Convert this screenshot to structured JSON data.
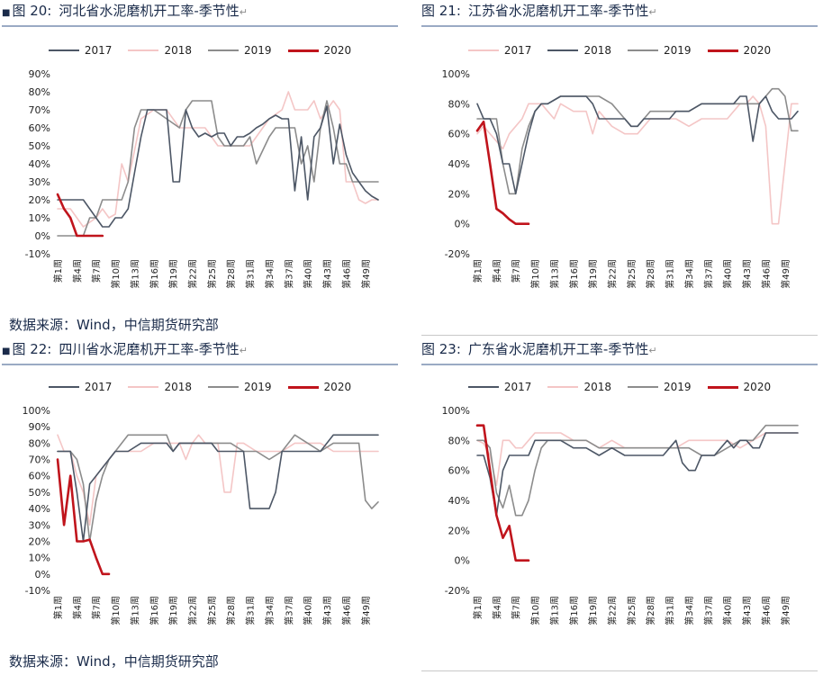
{
  "legend_years": [
    "2017",
    "2018",
    "2019",
    "2020"
  ],
  "series_colors": {
    "2017": "#4d5766",
    "2018": "#f4c6c6",
    "2019": "#8c8c8c",
    "2020": "#c0141c"
  },
  "source_text": "数据来源：Wind，中信期货研究部",
  "return_glyph": "↵",
  "x_ticks": [
    "第1周",
    "第4周",
    "第7周",
    "第10周",
    "第13周",
    "第16周",
    "第19周",
    "第22周",
    "第25周",
    "第28周",
    "第31周",
    "第34周",
    "第37周",
    "第40周",
    "第43周",
    "第46周",
    "第49周"
  ],
  "chart_data": [
    {
      "figure_label": "图 20:",
      "title": "河北省水泥磨机开工率-季节性",
      "type": "line",
      "y_ticks": [
        "90%",
        "80%",
        "70%",
        "60%",
        "50%",
        "40%",
        "30%",
        "20%",
        "10%",
        "0%",
        "-10%"
      ],
      "ylim": [
        -10,
        90
      ],
      "series": [
        {
          "name": "2017",
          "x": [
            1,
            3,
            5,
            6,
            8,
            9,
            10,
            11,
            12,
            13,
            14,
            15,
            17,
            18,
            19,
            20,
            21,
            22,
            23,
            24,
            25,
            26,
            27,
            28,
            29,
            30,
            31,
            32,
            33,
            34,
            35,
            36,
            37,
            38,
            39,
            40,
            41,
            42,
            43,
            44,
            45,
            46,
            47,
            48,
            49,
            50,
            51
          ],
          "values": [
            20,
            20,
            20,
            15,
            5,
            5,
            10,
            10,
            15,
            35,
            55,
            70,
            70,
            70,
            30,
            30,
            70,
            60,
            55,
            57,
            55,
            57,
            57,
            50,
            55,
            55,
            57,
            60,
            62,
            65,
            67,
            65,
            65,
            25,
            55,
            20,
            55,
            60,
            72,
            40,
            62,
            45,
            35,
            30,
            25,
            22,
            20
          ]
        },
        {
          "name": "2018",
          "x": [
            1,
            3,
            5,
            7,
            8,
            9,
            10,
            11,
            12,
            14,
            16,
            18,
            20,
            22,
            24,
            26,
            28,
            30,
            31,
            32,
            34,
            36,
            37,
            38,
            40,
            41,
            42,
            43,
            44,
            45,
            46,
            47,
            48,
            49,
            50,
            51
          ],
          "values": [
            15,
            15,
            5,
            10,
            15,
            10,
            12,
            40,
            30,
            65,
            70,
            70,
            60,
            60,
            60,
            50,
            50,
            50,
            50,
            55,
            65,
            70,
            80,
            70,
            70,
            75,
            65,
            70,
            75,
            70,
            30,
            30,
            20,
            18,
            20,
            20
          ]
        },
        {
          "name": "2019",
          "x": [
            1,
            3,
            4,
            5,
            6,
            7,
            8,
            9,
            10,
            11,
            12,
            13,
            14,
            16,
            18,
            20,
            21,
            22,
            23,
            24,
            25,
            26,
            27,
            28,
            29,
            30,
            31,
            32,
            34,
            35,
            36,
            37,
            38,
            39,
            40,
            41,
            42,
            43,
            44,
            45,
            46,
            47,
            48,
            49,
            50,
            51
          ],
          "values": [
            0,
            0,
            0,
            0,
            10,
            10,
            20,
            20,
            20,
            20,
            30,
            60,
            70,
            70,
            65,
            60,
            70,
            75,
            75,
            75,
            75,
            55,
            50,
            50,
            50,
            50,
            55,
            40,
            55,
            60,
            60,
            60,
            60,
            40,
            50,
            30,
            60,
            75,
            60,
            40,
            40,
            30,
            30,
            30,
            30,
            30
          ]
        },
        {
          "name": "2020",
          "x": [
            1,
            2,
            3,
            4,
            5,
            6,
            7,
            8
          ],
          "values": [
            23,
            15,
            10,
            0,
            0,
            0,
            0,
            0
          ]
        }
      ]
    },
    {
      "figure_label": "图 21:",
      "title": "江苏省水泥磨机开工率-季节性",
      "type": "line",
      "y_ticks": [
        "100%",
        "80%",
        "60%",
        "40%",
        "20%",
        "0%",
        "-20%"
      ],
      "ylim": [
        -20,
        100
      ],
      "series": [
        {
          "name": "2017",
          "x": [
            1,
            2,
            3,
            4,
            5,
            6,
            7,
            8,
            9,
            10,
            11,
            12,
            14,
            16,
            18,
            19,
            20,
            22,
            24,
            25,
            26,
            27,
            28,
            30,
            31,
            32,
            34,
            36,
            38,
            40,
            41,
            42,
            43,
            44,
            45,
            46,
            47,
            48,
            49,
            50,
            51
          ],
          "values": [
            80,
            70,
            70,
            60,
            40,
            40,
            20,
            40,
            60,
            75,
            80,
            80,
            85,
            85,
            85,
            80,
            70,
            70,
            70,
            65,
            65,
            70,
            70,
            70,
            70,
            75,
            75,
            80,
            80,
            80,
            80,
            85,
            85,
            55,
            80,
            85,
            75,
            70,
            70,
            70,
            75
          ]
        },
        {
          "name": "2018",
          "x": [
            1,
            2,
            3,
            4,
            5,
            6,
            7,
            8,
            9,
            10,
            11,
            12,
            13,
            14,
            16,
            18,
            19,
            20,
            22,
            24,
            25,
            26,
            28,
            30,
            32,
            34,
            36,
            38,
            40,
            42,
            43,
            44,
            45,
            46,
            47,
            48,
            49,
            50,
            51
          ],
          "values": [
            60,
            65,
            60,
            55,
            50,
            60,
            65,
            70,
            80,
            80,
            80,
            75,
            70,
            80,
            75,
            75,
            60,
            75,
            65,
            60,
            60,
            60,
            70,
            70,
            70,
            65,
            70,
            70,
            70,
            80,
            80,
            85,
            80,
            65,
            0,
            0,
            40,
            80,
            80
          ]
        },
        {
          "name": "2019",
          "x": [
            1,
            2,
            3,
            4,
            5,
            6,
            7,
            8,
            9,
            10,
            11,
            12,
            14,
            16,
            17,
            18,
            19,
            20,
            22,
            24,
            25,
            26,
            27,
            28,
            30,
            32,
            34,
            36,
            38,
            40,
            42,
            44,
            45,
            46,
            47,
            48,
            49,
            50,
            51
          ],
          "values": [
            70,
            70,
            70,
            70,
            40,
            20,
            20,
            50,
            65,
            75,
            80,
            80,
            85,
            85,
            85,
            85,
            85,
            85,
            80,
            70,
            65,
            65,
            70,
            75,
            75,
            75,
            75,
            80,
            80,
            80,
            80,
            80,
            80,
            85,
            90,
            90,
            85,
            62,
            62
          ]
        },
        {
          "name": "2020",
          "x": [
            1,
            2,
            3,
            4,
            5,
            6,
            7,
            8,
            9
          ],
          "values": [
            62,
            68,
            40,
            10,
            7,
            3,
            0,
            0,
            0
          ]
        }
      ]
    },
    {
      "figure_label": "图 22:",
      "title": "四川省水泥磨机开工率-季节性",
      "type": "line",
      "y_ticks": [
        "100%",
        "90%",
        "80%",
        "70%",
        "60%",
        "50%",
        "40%",
        "30%",
        "20%",
        "10%",
        "0%",
        "-10%"
      ],
      "ylim": [
        -10,
        100
      ],
      "series": [
        {
          "name": "2017",
          "x": [
            1,
            2,
            3,
            4,
            5,
            6,
            7,
            8,
            9,
            10,
            11,
            12,
            14,
            16,
            18,
            19,
            20,
            22,
            24,
            25,
            26,
            28,
            30,
            31,
            32,
            33,
            34,
            35,
            36,
            38,
            40,
            42,
            44,
            46,
            48,
            50,
            51
          ],
          "values": [
            75,
            75,
            75,
            50,
            20,
            55,
            60,
            65,
            70,
            75,
            75,
            75,
            80,
            80,
            80,
            75,
            80,
            80,
            80,
            80,
            75,
            75,
            75,
            40,
            40,
            40,
            40,
            50,
            75,
            75,
            75,
            75,
            85,
            85,
            85,
            85,
            85
          ]
        },
        {
          "name": "2018",
          "x": [
            1,
            2,
            3,
            4,
            5,
            6,
            7,
            8,
            9,
            10,
            12,
            14,
            16,
            18,
            20,
            21,
            22,
            23,
            24,
            26,
            27,
            28,
            29,
            30,
            32,
            34,
            36,
            38,
            40,
            42,
            44,
            46,
            48,
            50,
            51
          ],
          "values": [
            85,
            75,
            75,
            60,
            50,
            30,
            60,
            65,
            70,
            75,
            75,
            75,
            80,
            80,
            80,
            70,
            80,
            85,
            80,
            80,
            50,
            50,
            80,
            80,
            75,
            75,
            75,
            80,
            80,
            80,
            75,
            75,
            75,
            75,
            75
          ]
        },
        {
          "name": "2019",
          "x": [
            1,
            2,
            3,
            4,
            5,
            6,
            7,
            8,
            9,
            10,
            11,
            12,
            14,
            16,
            18,
            19,
            20,
            22,
            24,
            26,
            28,
            30,
            32,
            34,
            36,
            38,
            40,
            42,
            44,
            46,
            47,
            48,
            49,
            50,
            51
          ],
          "values": [
            75,
            75,
            75,
            70,
            55,
            20,
            45,
            60,
            70,
            75,
            80,
            85,
            85,
            85,
            85,
            75,
            80,
            80,
            80,
            80,
            80,
            75,
            75,
            70,
            75,
            85,
            80,
            75,
            80,
            80,
            80,
            80,
            45,
            40,
            44
          ]
        },
        {
          "name": "2020",
          "x": [
            1,
            2,
            3,
            4,
            5,
            6,
            7,
            8,
            9
          ],
          "values": [
            70,
            30,
            60,
            20,
            20,
            21,
            10,
            0,
            0
          ]
        }
      ]
    },
    {
      "figure_label": "图 23:",
      "title": "广东省水泥磨机开工率-季节性",
      "type": "line",
      "y_ticks": [
        "100%",
        "80%",
        "60%",
        "40%",
        "20%",
        "0%",
        "-20%"
      ],
      "ylim": [
        -20,
        100
      ],
      "series": [
        {
          "name": "2017",
          "x": [
            1,
            2,
            3,
            4,
            5,
            6,
            7,
            8,
            9,
            10,
            12,
            14,
            16,
            18,
            20,
            22,
            24,
            26,
            28,
            30,
            31,
            32,
            33,
            34,
            35,
            36,
            38,
            40,
            41,
            42,
            43,
            44,
            45,
            46,
            48,
            50,
            51
          ],
          "values": [
            70,
            70,
            55,
            30,
            60,
            70,
            70,
            70,
            70,
            80,
            80,
            80,
            75,
            75,
            70,
            75,
            70,
            70,
            70,
            70,
            75,
            80,
            65,
            60,
            60,
            70,
            70,
            80,
            75,
            80,
            80,
            75,
            75,
            85,
            85,
            85,
            85
          ]
        },
        {
          "name": "2018",
          "x": [
            1,
            2,
            3,
            4,
            5,
            6,
            7,
            8,
            9,
            10,
            11,
            12,
            14,
            16,
            18,
            20,
            22,
            24,
            26,
            28,
            30,
            32,
            34,
            36,
            38,
            40,
            42,
            44,
            46,
            48,
            50,
            51
          ],
          "values": [
            80,
            78,
            70,
            50,
            80,
            80,
            75,
            75,
            80,
            85,
            85,
            85,
            85,
            80,
            80,
            75,
            80,
            75,
            75,
            75,
            75,
            75,
            80,
            80,
            80,
            80,
            75,
            80,
            85,
            85,
            85,
            85
          ]
        },
        {
          "name": "2019",
          "x": [
            1,
            2,
            3,
            4,
            5,
            6,
            7,
            8,
            9,
            10,
            11,
            12,
            14,
            16,
            18,
            20,
            22,
            24,
            26,
            28,
            30,
            32,
            34,
            36,
            38,
            40,
            42,
            44,
            45,
            46,
            48,
            50,
            51
          ],
          "values": [
            80,
            80,
            75,
            45,
            35,
            50,
            30,
            30,
            40,
            60,
            75,
            80,
            80,
            80,
            80,
            75,
            75,
            75,
            75,
            75,
            75,
            75,
            75,
            70,
            70,
            75,
            80,
            80,
            85,
            90,
            90,
            90,
            90
          ]
        },
        {
          "name": "2020",
          "x": [
            1,
            2,
            3,
            4,
            5,
            6,
            7,
            8,
            9
          ],
          "values": [
            90,
            90,
            60,
            30,
            15,
            23,
            0,
            0,
            0
          ]
        }
      ]
    }
  ]
}
